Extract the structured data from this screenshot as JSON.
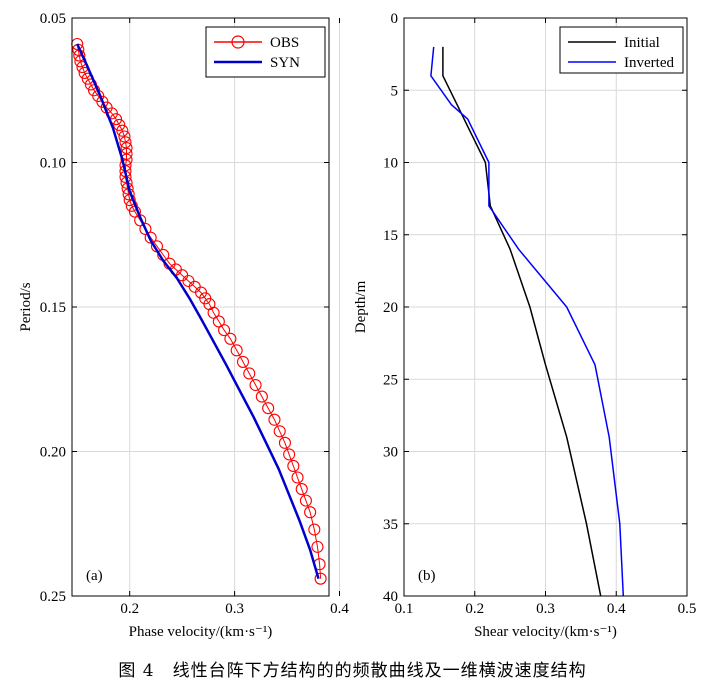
{
  "figure": {
    "caption": "图 4　线性台阵下方结构的的频散曲线及一维横波速度结构"
  },
  "chart_data": [
    {
      "type": "scatter",
      "panel_label": "(a)",
      "xlabel": "Phase velocity/(km·s⁻¹)",
      "ylabel": "Period/s",
      "xlim": [
        0.145,
        0.39
      ],
      "ylim": [
        0.05,
        0.25
      ],
      "y_reversed": true,
      "xticks": [
        "0.2",
        "0.3",
        "0.4"
      ],
      "xtick_values": [
        0.2,
        0.3,
        0.4
      ],
      "yticks": [
        "0.05",
        "0.10",
        "0.15",
        "0.20",
        "0.25"
      ],
      "ytick_values": [
        0.05,
        0.1,
        0.15,
        0.2,
        0.25
      ],
      "grid": true,
      "legend": "top-right",
      "series": [
        {
          "name": "OBS",
          "color": "#ff0000",
          "marker": "circle",
          "x": [
            0.15,
            0.151,
            0.152,
            0.153,
            0.155,
            0.157,
            0.16,
            0.163,
            0.166,
            0.17,
            0.174,
            0.178,
            0.183,
            0.187,
            0.19,
            0.193,
            0.195,
            0.196,
            0.197,
            0.197,
            0.197,
            0.196,
            0.196,
            0.196,
            0.197,
            0.198,
            0.199,
            0.2,
            0.202,
            0.205,
            0.21,
            0.215,
            0.22,
            0.226,
            0.232,
            0.238,
            0.244,
            0.25,
            0.256,
            0.262,
            0.268,
            0.272,
            0.276,
            0.28,
            0.285,
            0.29,
            0.296,
            0.302,
            0.308,
            0.314,
            0.32,
            0.326,
            0.332,
            0.338,
            0.343,
            0.348,
            0.352,
            0.356,
            0.36,
            0.364,
            0.368,
            0.372,
            0.376,
            0.379,
            0.381,
            0.382
          ],
          "y": [
            0.059,
            0.061,
            0.063,
            0.065,
            0.067,
            0.069,
            0.071,
            0.073,
            0.075,
            0.077,
            0.079,
            0.081,
            0.083,
            0.085,
            0.087,
            0.089,
            0.091,
            0.093,
            0.095,
            0.097,
            0.099,
            0.101,
            0.103,
            0.105,
            0.107,
            0.109,
            0.111,
            0.113,
            0.115,
            0.117,
            0.12,
            0.123,
            0.126,
            0.129,
            0.132,
            0.135,
            0.137,
            0.139,
            0.141,
            0.143,
            0.145,
            0.147,
            0.149,
            0.152,
            0.155,
            0.158,
            0.161,
            0.165,
            0.169,
            0.173,
            0.177,
            0.181,
            0.185,
            0.189,
            0.193,
            0.197,
            0.201,
            0.205,
            0.209,
            0.213,
            0.217,
            0.221,
            0.227,
            0.233,
            0.239,
            0.244
          ]
        },
        {
          "name": "SYN",
          "color": "#0000cc",
          "marker": "line",
          "x": [
            0.15,
            0.16,
            0.172,
            0.184,
            0.193,
            0.2,
            0.21,
            0.22,
            0.232,
            0.245,
            0.257,
            0.268,
            0.28,
            0.292,
            0.305,
            0.318,
            0.33,
            0.342,
            0.352,
            0.362,
            0.372,
            0.38
          ],
          "y": [
            0.059,
            0.067,
            0.077,
            0.088,
            0.099,
            0.11,
            0.119,
            0.127,
            0.134,
            0.14,
            0.147,
            0.154,
            0.162,
            0.17,
            0.179,
            0.188,
            0.197,
            0.206,
            0.215,
            0.224,
            0.234,
            0.244
          ]
        }
      ]
    },
    {
      "type": "line",
      "panel_label": "(b)",
      "xlabel": "Shear velocity/(km·s⁻¹)",
      "ylabel": "Depth/m",
      "xlim": [
        0.1,
        0.5
      ],
      "ylim": [
        0,
        40
      ],
      "y_reversed": true,
      "xticks": [
        "0.1",
        "0.2",
        "0.3",
        "0.4",
        "0.5"
      ],
      "xtick_values": [
        0.1,
        0.2,
        0.3,
        0.4,
        0.5
      ],
      "yticks": [
        "0",
        "5",
        "10",
        "15",
        "20",
        "25",
        "30",
        "35",
        "40"
      ],
      "ytick_values": [
        0,
        5,
        10,
        15,
        20,
        25,
        30,
        35,
        40
      ],
      "grid": true,
      "legend": "top-right",
      "series": [
        {
          "name": "Initial",
          "color": "#000000",
          "x": [
            0.155,
            0.155,
            0.175,
            0.195,
            0.215,
            0.222,
            0.25,
            0.278,
            0.3,
            0.33,
            0.358,
            0.378
          ],
          "y": [
            2,
            4,
            6,
            8,
            10,
            13,
            16,
            20,
            24,
            29,
            35,
            40
          ]
        },
        {
          "name": "Inverted",
          "color": "#0000ff",
          "x": [
            0.142,
            0.138,
            0.167,
            0.19,
            0.22,
            0.22,
            0.262,
            0.33,
            0.37,
            0.39,
            0.405,
            0.41
          ],
          "y": [
            2,
            4,
            6,
            7,
            10,
            13,
            16,
            20,
            24,
            29,
            35,
            40
          ]
        }
      ]
    }
  ]
}
